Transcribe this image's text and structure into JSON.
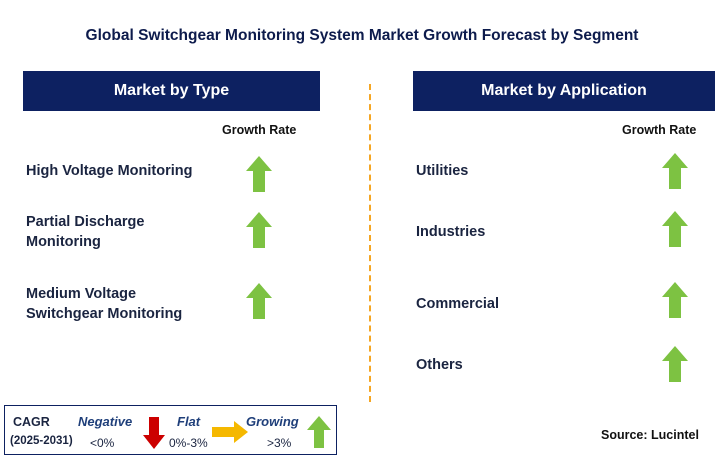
{
  "title": "Global Switchgear Monitoring System Market Growth Forecast by Segment",
  "left_panel": {
    "header": "Market by Type",
    "growth_label": "Growth Rate",
    "items": [
      {
        "line1": "High Voltage Monitoring",
        "line2": "",
        "trend": "growing"
      },
      {
        "line1": "Partial Discharge",
        "line2": "Monitoring",
        "trend": "growing"
      },
      {
        "line1": "Medium Voltage",
        "line2": "Switchgear Monitoring",
        "trend": "growing"
      }
    ]
  },
  "right_panel": {
    "header": "Market by Application",
    "growth_label": "Growth Rate",
    "items": [
      {
        "line1": "Utilities",
        "trend": "growing"
      },
      {
        "line1": "Industries",
        "trend": "growing"
      },
      {
        "line1": "Commercial",
        "trend": "growing"
      },
      {
        "line1": "Others",
        "trend": "growing"
      }
    ]
  },
  "legend": {
    "cagr_label": "CAGR",
    "years": "(2025-2031)",
    "negative": {
      "label": "Negative",
      "range": "<0%",
      "color": "#cc0000"
    },
    "flat": {
      "label": "Flat",
      "range": "0%-3%",
      "color": "#f5b800"
    },
    "growing": {
      "label": "Growing",
      "range": ">3%",
      "color": "#7dc242"
    }
  },
  "source": "Source: Lucintel",
  "colors": {
    "header_bg": "#0d2161",
    "divider": "#f5a623",
    "arrow_up": "#7dc242"
  }
}
